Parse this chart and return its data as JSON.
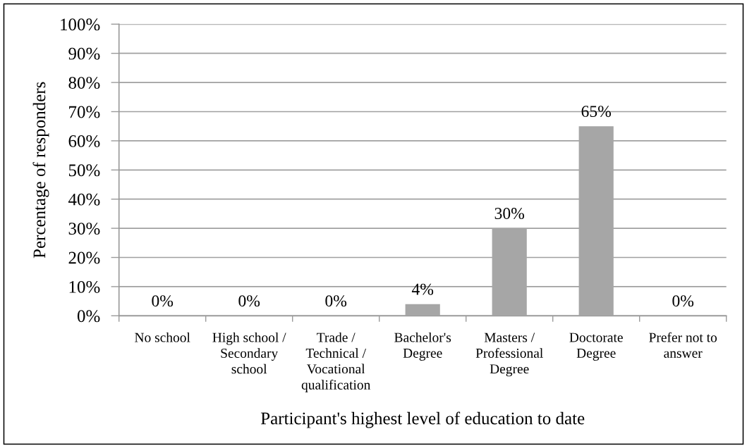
{
  "chart_data": {
    "type": "bar",
    "xlabel": "Participant's highest level of education to date",
    "ylabel": "Percentage of responders",
    "categories": [
      "No school",
      "High school /\nSecondary\nschool",
      "Trade /\nTechnical /\nVocational\nqualification",
      "Bachelor's\nDegree",
      "Masters /\nProfessional\nDegree",
      "Doctorate\nDegree",
      "Prefer not to\nanswer"
    ],
    "values": [
      0,
      0,
      0,
      4,
      30,
      65,
      0
    ],
    "color": "#a6a6a6",
    "value_labels": [
      "0%",
      "0%",
      "0%",
      "4%",
      "30%",
      "65%",
      "0%"
    ],
    "ylim": [
      0,
      100
    ],
    "yticks": [
      {
        "value": 0,
        "label": "0%"
      },
      {
        "value": 10,
        "label": "10%"
      },
      {
        "value": 20,
        "label": "20%"
      },
      {
        "value": 30,
        "label": "30%"
      },
      {
        "value": 40,
        "label": "40%"
      },
      {
        "value": 50,
        "label": "50%"
      },
      {
        "value": 60,
        "label": "60%"
      },
      {
        "value": 70,
        "label": "70%"
      },
      {
        "value": 80,
        "label": "80%"
      },
      {
        "value": 90,
        "label": "90%"
      },
      {
        "value": 100,
        "label": "100%"
      }
    ],
    "grid": "y"
  }
}
